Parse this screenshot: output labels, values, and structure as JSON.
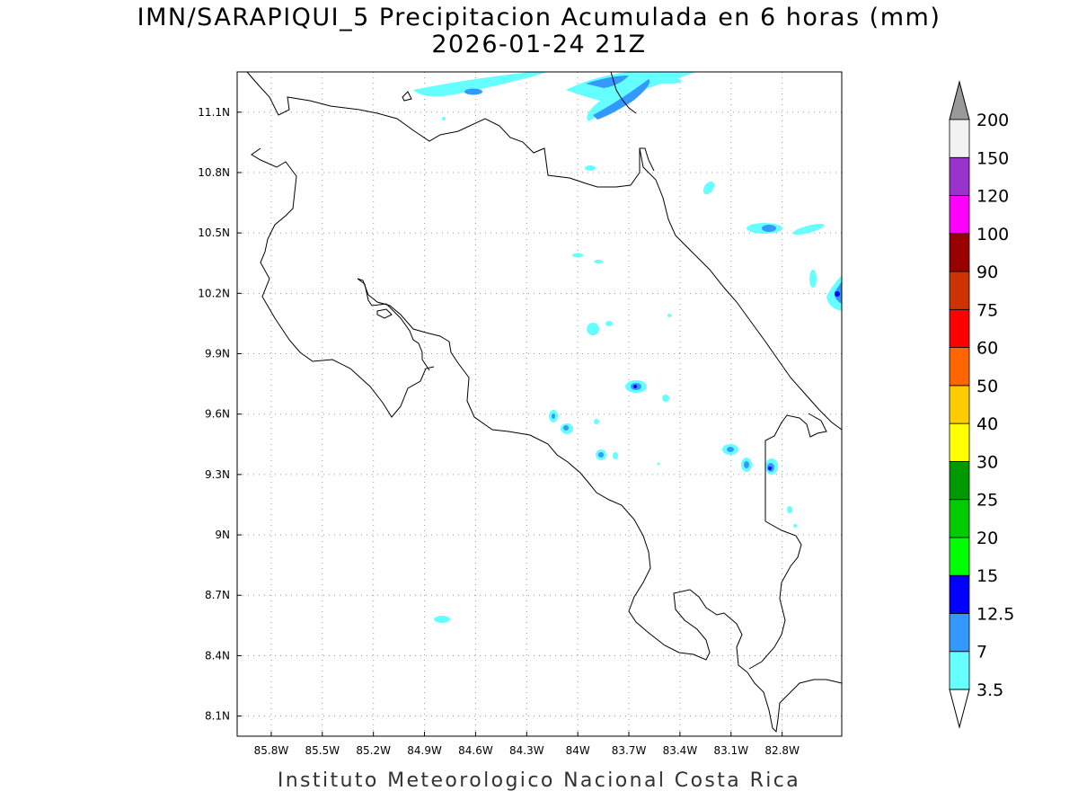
{
  "title": {
    "line1": "IMN/SARAPIQUI_5 Precipitacion Acumulada en 6 horas (mm)",
    "line2": "2026-01-24 21Z"
  },
  "footer": "Instituto Meteorologico Nacional Costa Rica",
  "map": {
    "lon_range": [
      -86.0,
      -82.45
    ],
    "lat_range": [
      8.0,
      11.3
    ],
    "lon_ticks": [
      {
        "value": -85.8,
        "label": "85.8W"
      },
      {
        "value": -85.5,
        "label": "85.5W"
      },
      {
        "value": -85.2,
        "label": "85.2W"
      },
      {
        "value": -84.9,
        "label": "84.9W"
      },
      {
        "value": -84.6,
        "label": "84.6W"
      },
      {
        "value": -84.3,
        "label": "84.3W"
      },
      {
        "value": -84.0,
        "label": "84W"
      },
      {
        "value": -83.7,
        "label": "83.7W"
      },
      {
        "value": -83.4,
        "label": "83.4W"
      },
      {
        "value": -83.1,
        "label": "83.1W"
      },
      {
        "value": -82.8,
        "label": "82.8W"
      }
    ],
    "lat_ticks": [
      {
        "value": 11.1,
        "label": "11.1N"
      },
      {
        "value": 10.8,
        "label": "10.8N"
      },
      {
        "value": 10.5,
        "label": "10.5N"
      },
      {
        "value": 10.2,
        "label": "10.2N"
      },
      {
        "value": 9.9,
        "label": "9.9N"
      },
      {
        "value": 9.6,
        "label": "9.6N"
      },
      {
        "value": 9.3,
        "label": "9.3N"
      },
      {
        "value": 9.0,
        "label": "9N"
      },
      {
        "value": 8.7,
        "label": "8.7N"
      },
      {
        "value": 8.4,
        "label": "8.4N"
      },
      {
        "value": 8.1,
        "label": "8.1N"
      }
    ],
    "gridlines": "dotted"
  },
  "colorbar": {
    "unit": "mm",
    "levels": [
      "3.5",
      "7",
      "12.5",
      "15",
      "20",
      "25",
      "30",
      "40",
      "50",
      "60",
      "75",
      "90",
      "100",
      "120",
      "150",
      "200"
    ],
    "colors": [
      "#66ffff",
      "#3399ff",
      "#0000ff",
      "#00ff00",
      "#00cc00",
      "#009900",
      "#ffff00",
      "#ffcc00",
      "#ff6600",
      "#ff0000",
      "#cc3300",
      "#990000",
      "#ff00ff",
      "#9933cc",
      "#f2f2f2",
      "#999999"
    ],
    "under_color": "#ffffff"
  }
}
